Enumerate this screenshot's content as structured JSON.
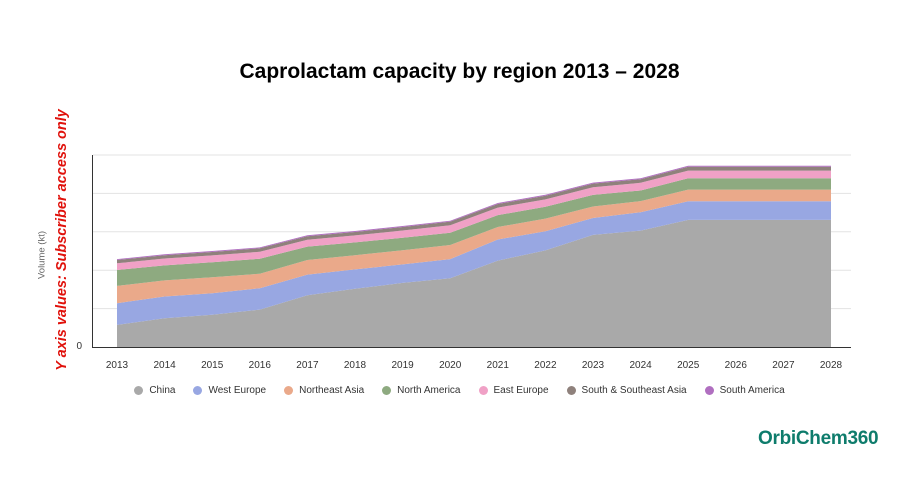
{
  "title": "Caprolactam capacity by region 2013 – 2028",
  "restricted_note": "Y axis values: Subscriber access only",
  "logo_text": "OrbiChem360",
  "chart_data": {
    "type": "area",
    "stacked": true,
    "title": "Caprolactam capacity by region 2013 – 2028",
    "ylabel": "Volume (kt)",
    "y_tick_labels": [
      "0"
    ],
    "ylim": [
      0,
      1
    ],
    "grid": true,
    "legend_position": "bottom",
    "x": [
      "2013",
      "2014",
      "2015",
      "2016",
      "2017",
      "2018",
      "2019",
      "2020",
      "2021",
      "2022",
      "2023",
      "2024",
      "2025",
      "2026",
      "2027",
      "2028"
    ],
    "series": [
      {
        "name": "China",
        "color": "#a9a9a9",
        "values": [
          0.115,
          0.15,
          0.168,
          0.195,
          0.27,
          0.303,
          0.334,
          0.358,
          0.45,
          0.503,
          0.584,
          0.606,
          0.662,
          0.662,
          0.662,
          0.662
        ]
      },
      {
        "name": "West Europe",
        "color": "#98a7e2",
        "values": [
          0.113,
          0.113,
          0.112,
          0.111,
          0.107,
          0.101,
          0.096,
          0.1,
          0.11,
          0.1,
          0.088,
          0.096,
          0.097,
          0.097,
          0.097,
          0.097
        ]
      },
      {
        "name": "Northeast Asia",
        "color": "#eaa98a",
        "values": [
          0.09,
          0.084,
          0.083,
          0.076,
          0.076,
          0.074,
          0.074,
          0.073,
          0.065,
          0.066,
          0.06,
          0.058,
          0.061,
          0.061,
          0.061,
          0.061
        ]
      },
      {
        "name": "North America",
        "color": "#8eaa80",
        "values": [
          0.083,
          0.078,
          0.078,
          0.078,
          0.07,
          0.067,
          0.065,
          0.064,
          0.062,
          0.061,
          0.06,
          0.055,
          0.059,
          0.059,
          0.059,
          0.059
        ]
      },
      {
        "name": "East Europe",
        "color": "#f0a1c6",
        "values": [
          0.035,
          0.036,
          0.036,
          0.036,
          0.036,
          0.036,
          0.038,
          0.039,
          0.039,
          0.039,
          0.04,
          0.04,
          0.04,
          0.04,
          0.04,
          0.04
        ]
      },
      {
        "name": "South & Southeast Asia",
        "color": "#8f817c",
        "values": [
          0.017,
          0.017,
          0.018,
          0.018,
          0.018,
          0.018,
          0.018,
          0.019,
          0.019,
          0.019,
          0.019,
          0.019,
          0.02,
          0.02,
          0.02,
          0.02
        ]
      },
      {
        "name": "South America",
        "color": "#b06fc0",
        "values": [
          0.005,
          0.005,
          0.005,
          0.005,
          0.005,
          0.005,
          0.005,
          0.005,
          0.005,
          0.005,
          0.005,
          0.005,
          0.005,
          0.005,
          0.005,
          0.005
        ]
      }
    ]
  }
}
